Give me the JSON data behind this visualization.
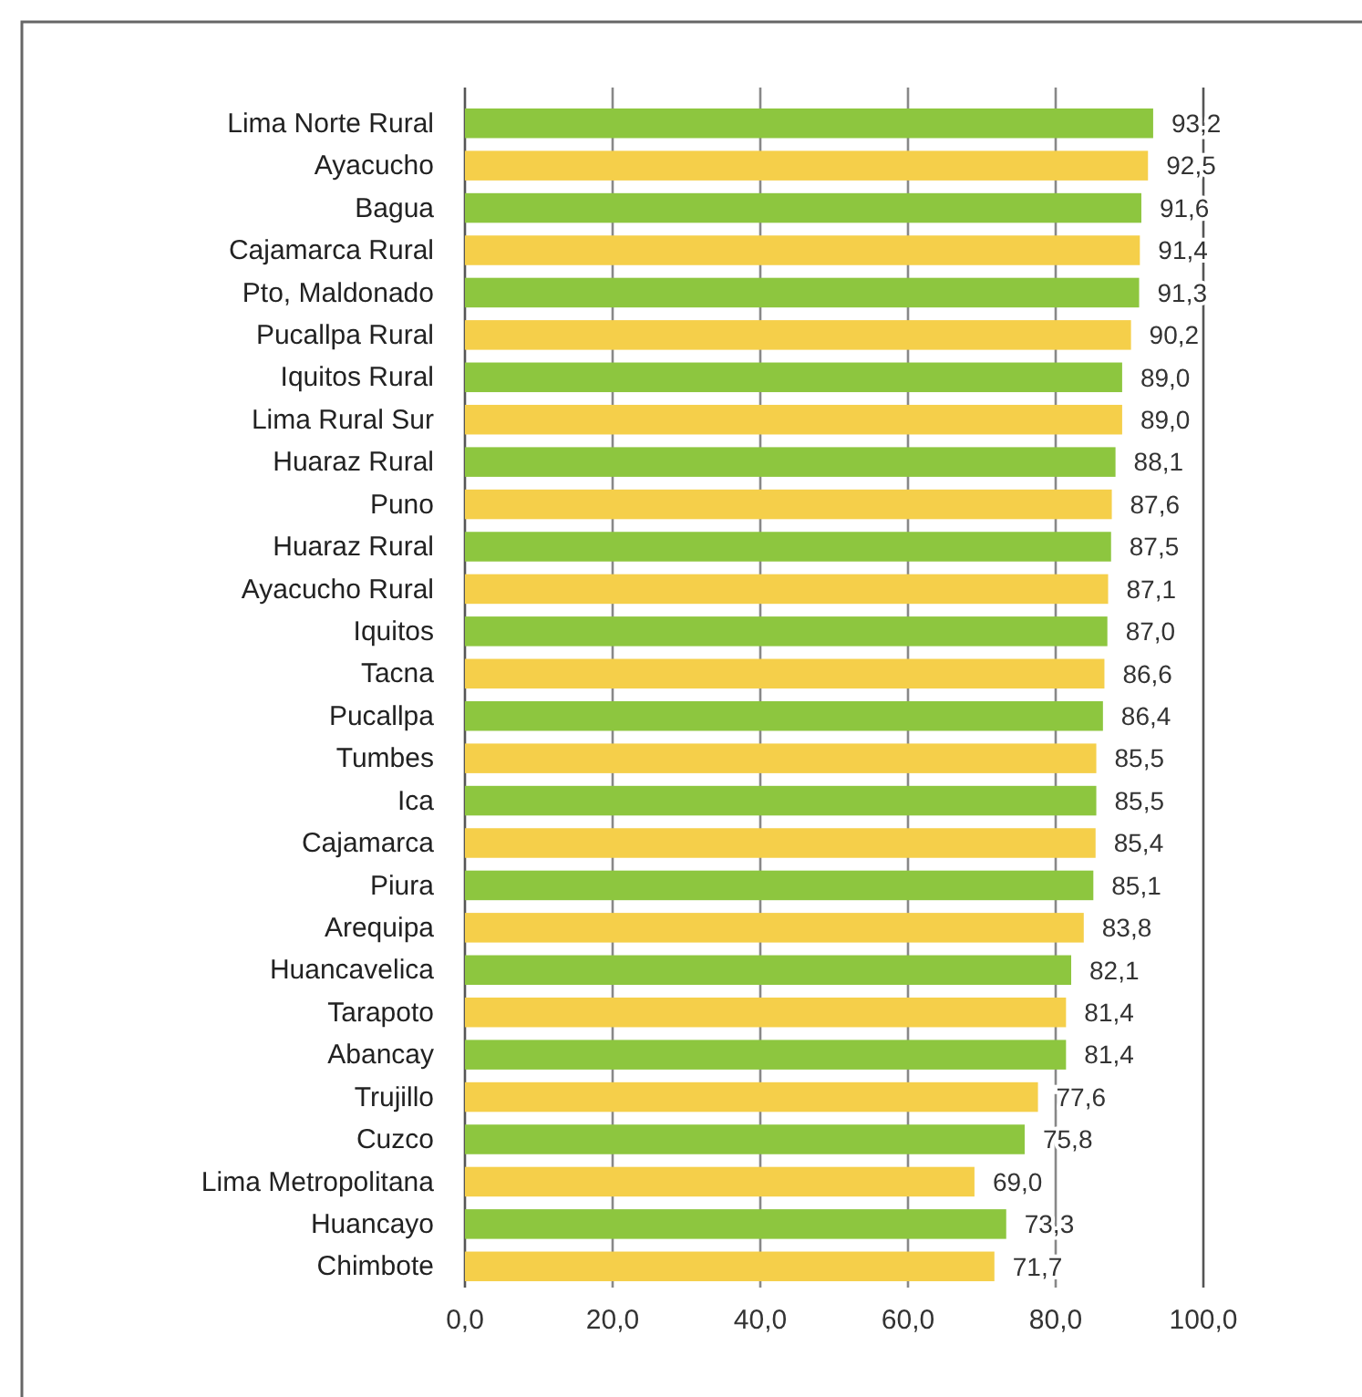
{
  "chart_data": {
    "type": "bar",
    "orientation": "horizontal",
    "categories": [
      "Lima Norte Rural",
      "Ayacucho",
      "Bagua",
      "Cajamarca Rural",
      "Pto, Maldonado",
      "Pucallpa Rural",
      "Iquitos Rural",
      "Lima Rural Sur",
      "Huaraz Rural",
      "Puno",
      "Huaraz Rural",
      "Ayacucho Rural",
      "Iquitos",
      "Tacna",
      "Pucallpa",
      "Tumbes",
      "Ica",
      "Cajamarca",
      "Piura",
      "Arequipa",
      "Huancavelica",
      "Tarapoto",
      "Abancay",
      "Trujillo",
      "Cuzco",
      "Lima Metropolitana",
      "Huancayo",
      "Chimbote"
    ],
    "values": [
      93.2,
      92.5,
      91.6,
      91.4,
      91.3,
      90.2,
      89.0,
      89.0,
      88.1,
      87.6,
      87.5,
      87.1,
      87.0,
      86.6,
      86.4,
      85.5,
      85.5,
      85.4,
      85.1,
      83.8,
      82.1,
      81.4,
      81.4,
      77.6,
      75.8,
      69.0,
      73.3,
      71.7
    ],
    "value_labels": [
      "93,2",
      "92,5",
      "91,6",
      "91,4",
      "91,3",
      "90,2",
      "89,0",
      "89,0",
      "88,1",
      "87,6",
      "87,5",
      "87,1",
      "87,0",
      "86,6",
      "86,4",
      "85,5",
      "85,5",
      "85,4",
      "85,1",
      "83,8",
      "82,1",
      "81,4",
      "81,4",
      "77,6",
      "75,8",
      "69,0",
      "73,3",
      "71,7"
    ],
    "colors": [
      "#8dc63f",
      "#f5cf4a",
      "#8dc63f",
      "#f5cf4a",
      "#8dc63f",
      "#f5cf4a",
      "#8dc63f",
      "#f5cf4a",
      "#8dc63f",
      "#f5cf4a",
      "#8dc63f",
      "#f5cf4a",
      "#8dc63f",
      "#f5cf4a",
      "#8dc63f",
      "#f5cf4a",
      "#8dc63f",
      "#f5cf4a",
      "#8dc63f",
      "#f5cf4a",
      "#8dc63f",
      "#f5cf4a",
      "#8dc63f",
      "#f5cf4a",
      "#8dc63f",
      "#f5cf4a",
      "#8dc63f",
      "#f5cf4a"
    ],
    "xlim": [
      0,
      100
    ],
    "xticks": [
      {
        "value": 0,
        "label": "0,0"
      },
      {
        "value": 20,
        "label": "20,0"
      },
      {
        "value": 40,
        "label": "40,0"
      },
      {
        "value": 60,
        "label": "60,0"
      },
      {
        "value": 80,
        "label": "80,0"
      },
      {
        "value": 100,
        "label": "100,0"
      }
    ],
    "grid": "x"
  }
}
